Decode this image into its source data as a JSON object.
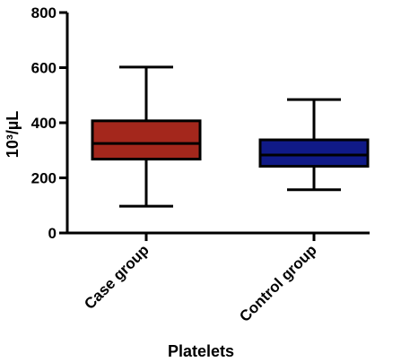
{
  "chart_data": {
    "type": "box",
    "xlabel": "Platelets",
    "ylabel": "10³/µL",
    "ylim": [
      0,
      800
    ],
    "yticks": [
      0,
      200,
      400,
      600,
      800
    ],
    "grid": false,
    "categories": [
      "Case group",
      "Control group"
    ],
    "boxes": [
      {
        "category": "Case group",
        "min": 97,
        "q1": 268,
        "median": 325,
        "q3": 407,
        "max": 602,
        "color": "#a4271c"
      },
      {
        "category": "Control group",
        "min": 157,
        "q1": 242,
        "median": 283,
        "q3": 338,
        "max": 484,
        "color": "#101a87"
      }
    ]
  }
}
